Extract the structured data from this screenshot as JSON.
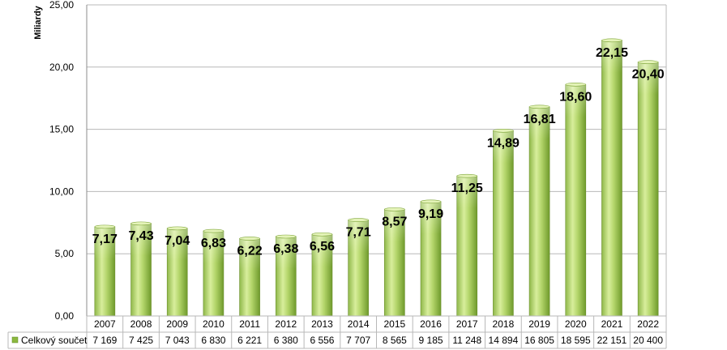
{
  "chart_data": {
    "type": "bar",
    "ylabel": "Miliardy",
    "ylim": [
      0,
      25
    ],
    "yticks": [
      "0,00",
      "5,00",
      "10,00",
      "15,00",
      "20,00",
      "25,00"
    ],
    "grid": true,
    "categories": [
      "2007",
      "2008",
      "2009",
      "2010",
      "2011",
      "2012",
      "2013",
      "2014",
      "2015",
      "2016",
      "2017",
      "2018",
      "2019",
      "2020",
      "2021",
      "2022"
    ],
    "series": [
      {
        "name": "Celkový součet",
        "values": [
          7.17,
          7.43,
          7.04,
          6.83,
          6.22,
          6.38,
          6.56,
          7.71,
          8.57,
          9.19,
          11.25,
          14.89,
          16.81,
          18.6,
          22.15,
          20.4
        ],
        "data_labels": [
          "7,17",
          "7,43",
          "7,04",
          "6,83",
          "6,22",
          "6,38",
          "6,56",
          "7,71",
          "8,57",
          "9,19",
          "11,25",
          "14,89",
          "16,81",
          "18,60",
          "22,15",
          "20,40"
        ],
        "table_values": [
          "7 169",
          "7 425",
          "7 043",
          "6 830",
          "6 221",
          "6 380",
          "6 556",
          "7 707",
          "8 565",
          "9 185",
          "11 248",
          "14 894",
          "16 805",
          "18 595",
          "22 151",
          "20 400"
        ]
      }
    ],
    "legend": "data-table",
    "colors": {
      "bar_light": "#eef7cf",
      "bar_mid": "#b5d76b",
      "bar_dark": "#6f9a2c",
      "grid": "#b8b8b8",
      "frame": "#8c8c8c"
    }
  }
}
